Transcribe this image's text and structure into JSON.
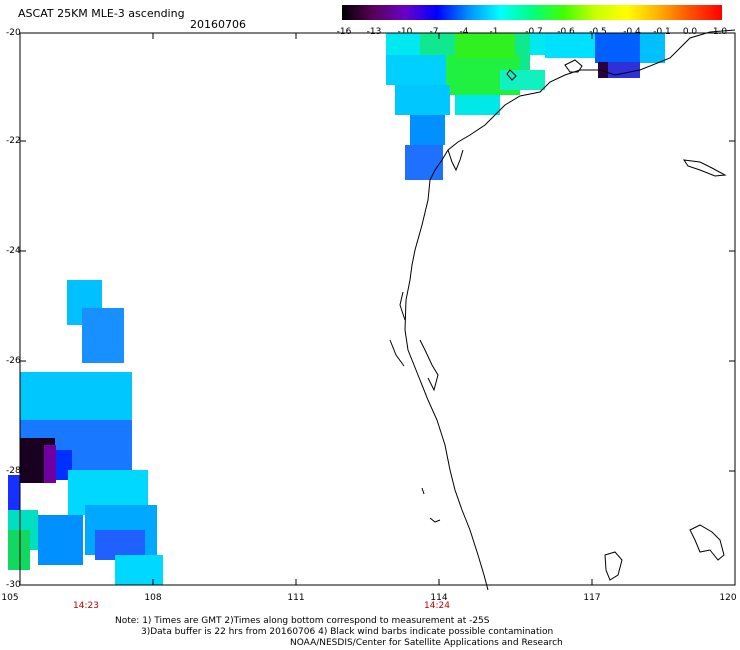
{
  "header": {
    "title": "ASCAT 25KM MLE-3 ascending",
    "date": "20160706"
  },
  "colorbar": {
    "labels": [
      "-16",
      "-13",
      "-10",
      "-7",
      "-4",
      "-1",
      "-0.7",
      "-0.6",
      "-0.5",
      "-0.4",
      "-0.1",
      "0.0",
      "1.0"
    ],
    "colors": [
      "#000000",
      "#5a005a",
      "#6a00c8",
      "#0000ff",
      "#0090ff",
      "#00ffff",
      "#00ff80",
      "#40ff00",
      "#c8ff00",
      "#ffff00",
      "#ffb000",
      "#ff5000",
      "#ff0000"
    ]
  },
  "axes": {
    "y_ticks": [
      "-20",
      "-22",
      "-24",
      "-26",
      "-28",
      "-30"
    ],
    "x_ticks": [
      "105",
      "108",
      "111",
      "114",
      "117",
      "120"
    ]
  },
  "pass_times": [
    "14:23",
    "14:24"
  ],
  "notes": {
    "line1": "Note: 1) Times are GMT 2)Times along bottom correspond to measurement at -25S",
    "line2": "3)Data buffer is 22 hrs from 20160706 4) Black wind barbs indicate possible contamination",
    "line3": "NOAA/NESDIS/Center for Satellite Applications and Research"
  }
}
